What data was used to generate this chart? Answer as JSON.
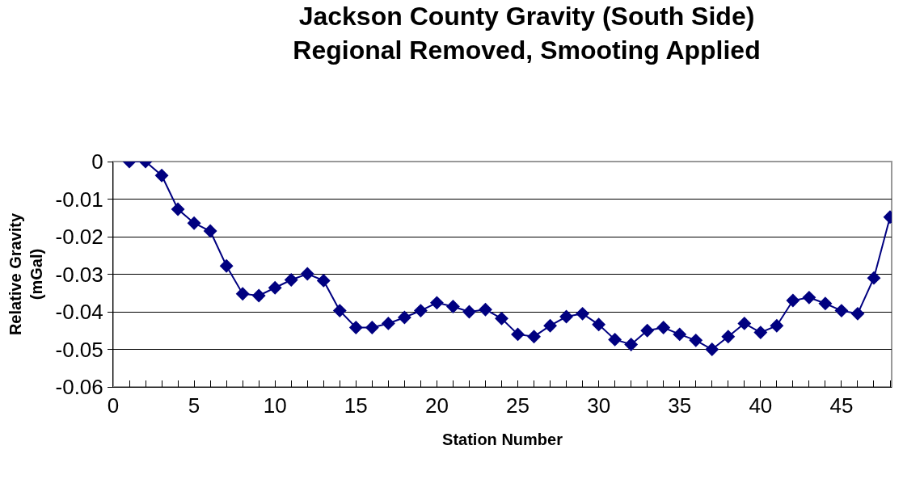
{
  "chart_data": {
    "type": "line",
    "title": "Jackson County Gravity (South Side)\nRegional Removed, Smooting Applied",
    "xlabel": "Station Number",
    "ylabel": "Relative Gravity\n(mGal)",
    "x": [
      1,
      2,
      3,
      4,
      5,
      6,
      7,
      8,
      9,
      10,
      11,
      12,
      13,
      14,
      15,
      16,
      17,
      18,
      19,
      20,
      21,
      22,
      23,
      24,
      25,
      26,
      27,
      28,
      29,
      30,
      31,
      32,
      33,
      34,
      35,
      36,
      37,
      38,
      39,
      40,
      41,
      42,
      43,
      44,
      45,
      46,
      47,
      48
    ],
    "series": [
      {
        "color": "#000080",
        "values": [
          0,
          0,
          -0.0037,
          -0.0127,
          -0.0164,
          -0.0185,
          -0.0278,
          -0.0352,
          -0.0357,
          -0.0336,
          -0.0315,
          -0.0299,
          -0.0317,
          -0.0397,
          -0.0442,
          -0.0442,
          -0.0431,
          -0.0415,
          -0.0397,
          -0.0376,
          -0.0386,
          -0.04,
          -0.0394,
          -0.0418,
          -0.046,
          -0.0466,
          -0.0437,
          -0.0413,
          -0.0405,
          -0.0434,
          -0.0474,
          -0.0487,
          -0.045,
          -0.0442,
          -0.046,
          -0.0476,
          -0.05,
          -0.0466,
          -0.0431,
          -0.0455,
          -0.0437,
          -0.037,
          -0.0362,
          -0.0378,
          -0.0397,
          -0.0405,
          -0.031,
          -0.0148
        ]
      }
    ],
    "xlim": [
      0,
      48.1
    ],
    "xticks": [
      0,
      {
        "value": 1,
        "label": null
      },
      {
        "value": 2,
        "label": null
      },
      {
        "value": 3,
        "label": null
      },
      {
        "value": 4,
        "label": null
      },
      5,
      {
        "value": 6,
        "label": null
      },
      {
        "value": 7,
        "label": null
      },
      {
        "value": 8,
        "label": null
      },
      {
        "value": 9,
        "label": null
      },
      10,
      {
        "value": 11,
        "label": null
      },
      {
        "value": 12,
        "label": null
      },
      {
        "value": 13,
        "label": null
      },
      {
        "value": 14,
        "label": null
      },
      15,
      {
        "value": 16,
        "label": null
      },
      {
        "value": 17,
        "label": null
      },
      {
        "value": 18,
        "label": null
      },
      {
        "value": 19,
        "label": null
      },
      20,
      {
        "value": 21,
        "label": null
      },
      {
        "value": 22,
        "label": null
      },
      {
        "value": 23,
        "label": null
      },
      {
        "value": 24,
        "label": null
      },
      25,
      {
        "value": 26,
        "label": null
      },
      {
        "value": 27,
        "label": null
      },
      {
        "value": 28,
        "label": null
      },
      {
        "value": 29,
        "label": null
      },
      30,
      {
        "value": 31,
        "label": null
      },
      {
        "value": 32,
        "label": null
      },
      {
        "value": 33,
        "label": null
      },
      {
        "value": 34,
        "label": null
      },
      35,
      {
        "value": 36,
        "label": null
      },
      {
        "value": 37,
        "label": null
      },
      {
        "value": 38,
        "label": null
      },
      {
        "value": 39,
        "label": null
      },
      40,
      {
        "value": 41,
        "label": null
      },
      {
        "value": 42,
        "label": null
      },
      {
        "value": 43,
        "label": null
      },
      {
        "value": 44,
        "label": null
      },
      45,
      {
        "value": 46,
        "label": null
      },
      {
        "value": 47,
        "label": null
      },
      {
        "value": 48,
        "label": null
      }
    ],
    "ylim": [
      -0.06,
      0
    ],
    "yticks": [
      0,
      -0.01,
      -0.02,
      -0.03,
      -0.04,
      -0.05,
      -0.06
    ],
    "grid": "y",
    "marker": "diamond",
    "line_style": "solid"
  }
}
